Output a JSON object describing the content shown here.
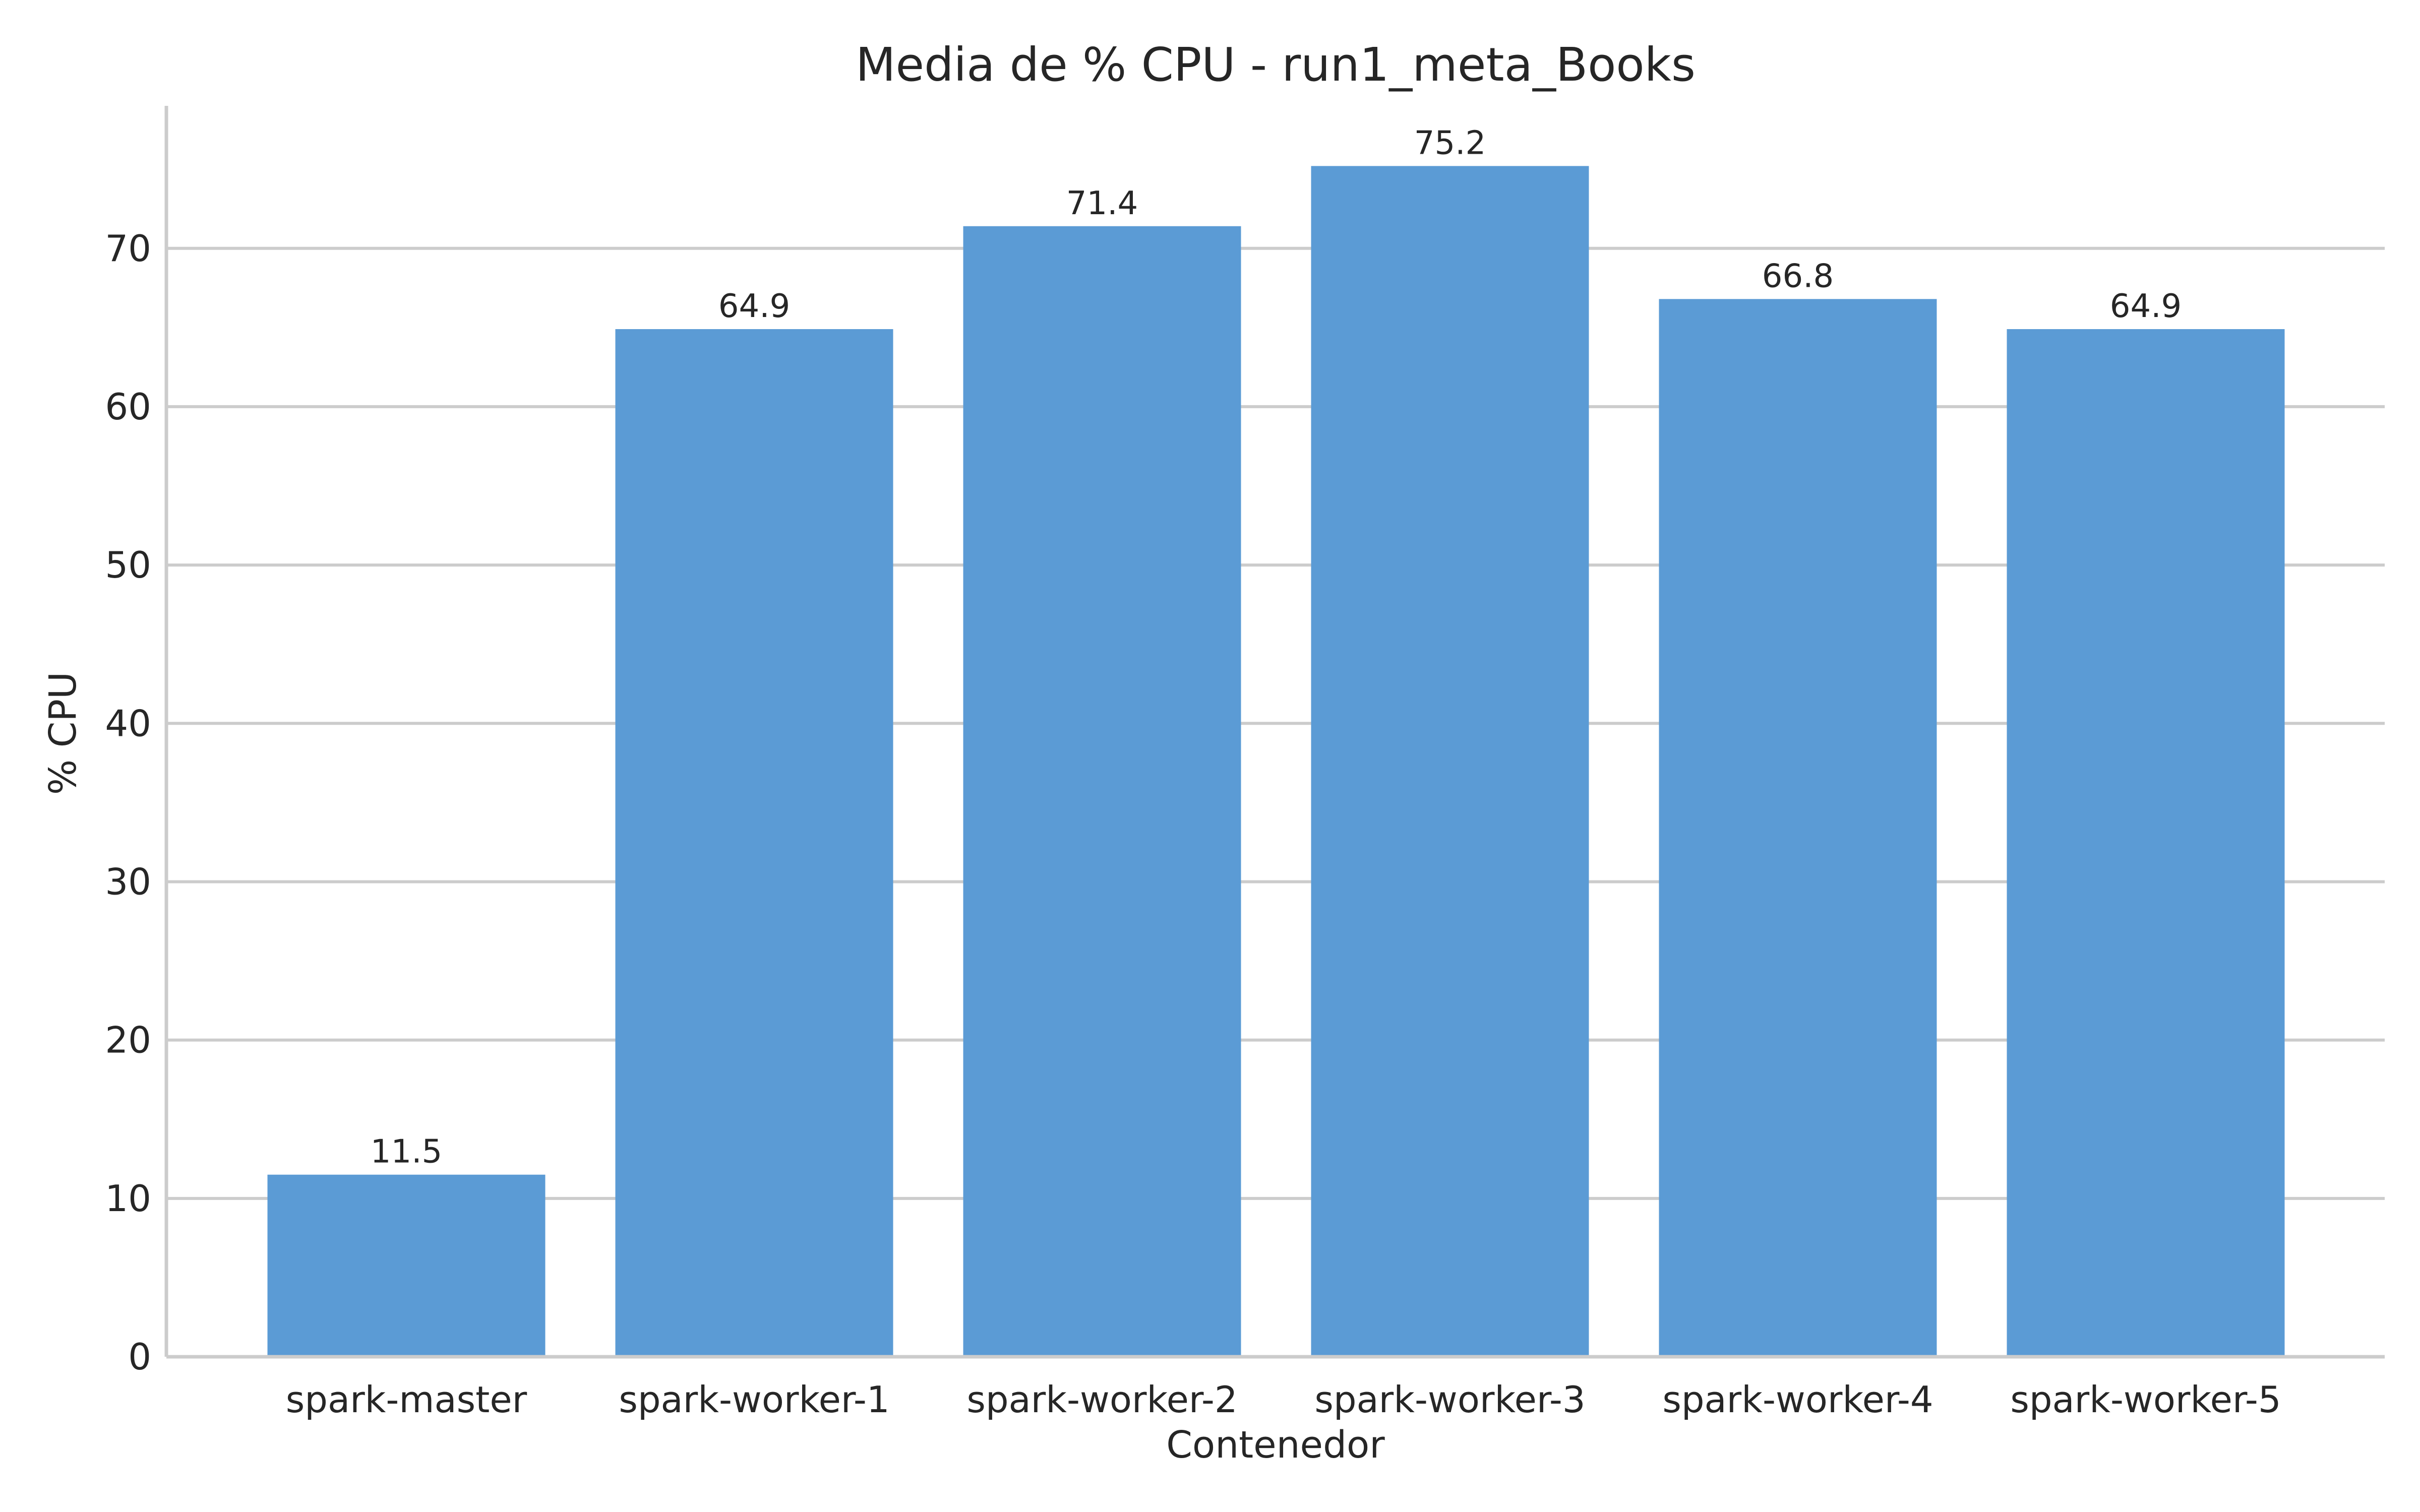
{
  "chart_data": {
    "type": "bar",
    "title": "Media de % CPU - run1_meta_Books",
    "xlabel": "Contenedor",
    "ylabel": "% CPU",
    "categories": [
      "spark-master",
      "spark-worker-1",
      "spark-worker-2",
      "spark-worker-3",
      "spark-worker-4",
      "spark-worker-5"
    ],
    "values": [
      11.5,
      64.9,
      71.4,
      75.2,
      66.8,
      64.9
    ],
    "value_labels": [
      "11.5",
      "64.9",
      "71.4",
      "75.2",
      "66.8",
      "64.9"
    ],
    "yticks": [
      0,
      10,
      20,
      30,
      40,
      50,
      60,
      70
    ],
    "ylim": [
      0,
      79
    ],
    "grid": "horizontal",
    "bar_color": "#5b9bd5"
  }
}
